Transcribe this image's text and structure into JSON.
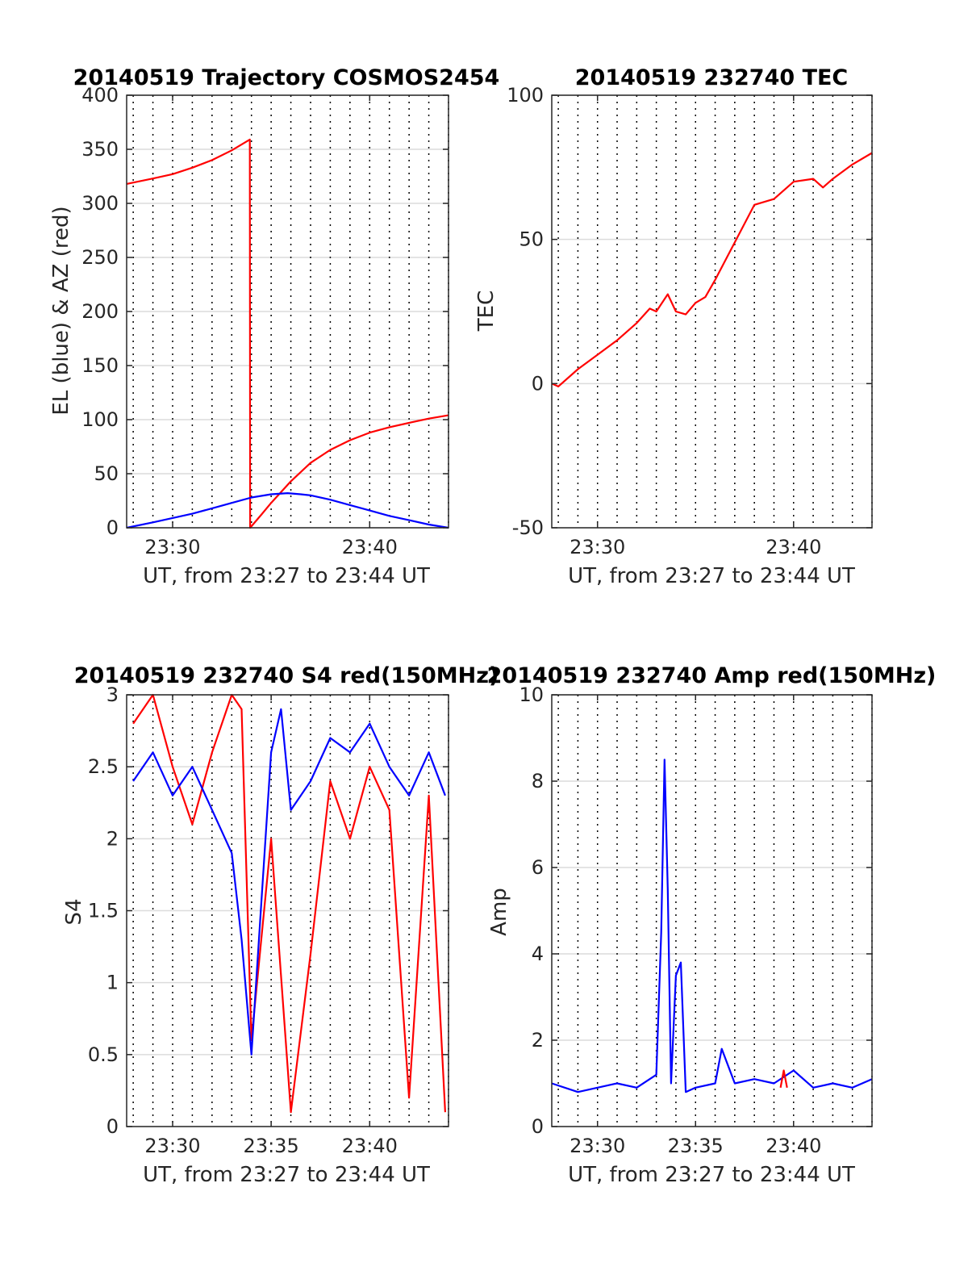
{
  "figure": {
    "background": "#ffffff",
    "colors": {
      "red": "#ff0000",
      "blue": "#0000ff",
      "axis": "#262626",
      "grid": "#dcdcdc",
      "vgrid": "#000000"
    }
  },
  "chart_data": [
    {
      "type": "line",
      "title": "20140519 Trajectory COSMOS2454",
      "xlabel": "UT, from 23:27 to 23:44 UT",
      "ylabel": "EL (blue) & AZ (red)",
      "xlim_minutes": [
        "23:27:40",
        "23:44:00"
      ],
      "xticks": [
        "23:30",
        "23:40"
      ],
      "ylim": [
        0,
        400
      ],
      "yticks": [
        "0",
        "50",
        "100",
        "150",
        "200",
        "250",
        "300",
        "350",
        "400"
      ],
      "grid": "horizontal major gridlines, dotted vertical lines every minute",
      "series": [
        {
          "color": "#ff0000",
          "x": [
            "23:27:40",
            "23:29:00",
            "23:30:00",
            "23:31:00",
            "23:32:00",
            "23:33:00",
            "23:33:55",
            "23:33:56",
            "23:34:30",
            "23:35:00",
            "23:35:30",
            "23:36:00",
            "23:37:00",
            "23:38:00",
            "23:39:00",
            "23:40:00",
            "23:41:00",
            "23:42:00",
            "23:43:00",
            "23:44:00"
          ],
          "y": [
            318,
            323,
            327,
            333,
            340,
            349,
            359,
            0,
            12,
            23,
            33,
            43,
            60,
            72,
            81,
            88,
            93,
            97,
            101,
            104
          ]
        },
        {
          "color": "#0000ff",
          "x": [
            "23:27:40",
            "23:29:00",
            "23:30:00",
            "23:31:00",
            "23:32:00",
            "23:33:00",
            "23:34:00",
            "23:35:00",
            "23:35:50",
            "23:36:30",
            "23:37:00",
            "23:38:00",
            "23:39:00",
            "23:40:00",
            "23:41:00",
            "23:42:00",
            "23:43:00",
            "23:44:00"
          ],
          "y": [
            0,
            5,
            9,
            13,
            18,
            23,
            28,
            31,
            32,
            31,
            30,
            26,
            21,
            16,
            11,
            7,
            3,
            0
          ]
        }
      ]
    },
    {
      "type": "line",
      "title": "20140519 232740 TEC",
      "xlabel": "UT, from 23:27 to 23:44 UT",
      "ylabel": "TEC",
      "xlim_minutes": [
        "23:27:40",
        "23:44:00"
      ],
      "xticks": [
        "23:30",
        "23:40"
      ],
      "ylim": [
        -50,
        100
      ],
      "yticks": [
        "-50",
        "0",
        "50",
        "100"
      ],
      "series": [
        {
          "color": "#ff0000",
          "x": [
            "23:27:40",
            "23:28:00",
            "23:29:00",
            "23:30:00",
            "23:31:00",
            "23:32:00",
            "23:32:40",
            "23:33:00",
            "23:33:35",
            "23:34:00",
            "23:34:30",
            "23:35:00",
            "23:35:30",
            "23:36:00",
            "23:37:00",
            "23:38:00",
            "23:39:00",
            "23:40:00",
            "23:41:00",
            "23:41:30",
            "23:42:00",
            "23:43:00",
            "23:44:00"
          ],
          "y": [
            0,
            -1,
            5,
            10,
            15,
            21,
            26,
            25,
            31,
            25,
            24,
            28,
            30,
            36,
            49,
            62,
            64,
            70,
            71,
            68,
            71,
            76,
            80
          ]
        }
      ]
    },
    {
      "type": "line",
      "title": "20140519 232740 S4 red(150MHz)",
      "xlabel": "UT, from 23:27 to 23:44 UT",
      "ylabel": "S4",
      "xlim_minutes": [
        "23:27:40",
        "23:44:00"
      ],
      "xticks": [
        "23:30",
        "23:35",
        "23:40"
      ],
      "ylim": [
        0,
        3
      ],
      "yticks": [
        "0",
        "0.5",
        "1",
        "1.5",
        "2",
        "2.5",
        "3"
      ],
      "series": [
        {
          "color": "#ff0000",
          "x": [
            "23:28:00",
            "23:29:00",
            "23:30:00",
            "23:31:00",
            "23:32:00",
            "23:33:00",
            "23:33:30",
            "23:34:00",
            "23:35:00",
            "23:36:00",
            "23:37:00",
            "23:38:00",
            "23:39:00",
            "23:40:00",
            "23:41:00",
            "23:42:00",
            "23:43:00",
            "23:43:50"
          ],
          "y": [
            2.8,
            3,
            2.5,
            2.1,
            2.6,
            3,
            2.9,
            0.6,
            2.0,
            0.1,
            1.2,
            2.4,
            2.0,
            2.5,
            2.2,
            0.2,
            2.3,
            0.1
          ]
        },
        {
          "color": "#0000ff",
          "x": [
            "23:28:00",
            "23:29:00",
            "23:30:00",
            "23:31:00",
            "23:32:00",
            "23:33:00",
            "23:33:30",
            "23:34:00",
            "23:35:00",
            "23:35:30",
            "23:36:00",
            "23:37:00",
            "23:38:00",
            "23:39:00",
            "23:40:00",
            "23:41:00",
            "23:42:00",
            "23:43:00",
            "23:43:50"
          ],
          "y": [
            2.4,
            2.6,
            2.3,
            2.5,
            2.2,
            1.9,
            1.3,
            0.5,
            2.6,
            2.9,
            2.2,
            2.4,
            2.7,
            2.6,
            2.8,
            2.5,
            2.3,
            2.6,
            2.3
          ]
        }
      ]
    },
    {
      "type": "line",
      "title": "20140519 232740 Amp red(150MHz)",
      "xlabel": "UT, from 23:27 to 23:44 UT",
      "ylabel": "Amp",
      "xlim_minutes": [
        "23:27:40",
        "23:44:00"
      ],
      "xticks": [
        "23:30",
        "23:35",
        "23:40"
      ],
      "ylim": [
        0,
        10
      ],
      "yticks": [
        "0",
        "2",
        "4",
        "6",
        "8",
        "10"
      ],
      "series": [
        {
          "color": "#0000ff",
          "x": [
            "23:27:40",
            "23:29:00",
            "23:30:00",
            "23:31:00",
            "23:32:00",
            "23:33:00",
            "23:33:15",
            "23:33:25",
            "23:33:35",
            "23:33:45",
            "23:34:00",
            "23:34:15",
            "23:34:30",
            "23:35:00",
            "23:36:00",
            "23:36:20",
            "23:37:00",
            "23:38:00",
            "23:39:00",
            "23:40:00",
            "23:41:00",
            "23:42:00",
            "23:43:00",
            "23:44:00"
          ],
          "y": [
            1.0,
            0.8,
            0.9,
            1.0,
            0.9,
            1.2,
            4.5,
            8.5,
            5.5,
            1.0,
            3.5,
            3.8,
            0.8,
            0.9,
            1.0,
            1.8,
            1.0,
            1.1,
            1.0,
            1.3,
            0.9,
            1.0,
            0.9,
            1.1
          ]
        },
        {
          "color": "#ff0000",
          "x": [
            "23:39:20",
            "23:39:30",
            "23:39:40"
          ],
          "y": [
            0.9,
            1.3,
            0.9
          ]
        }
      ]
    }
  ]
}
